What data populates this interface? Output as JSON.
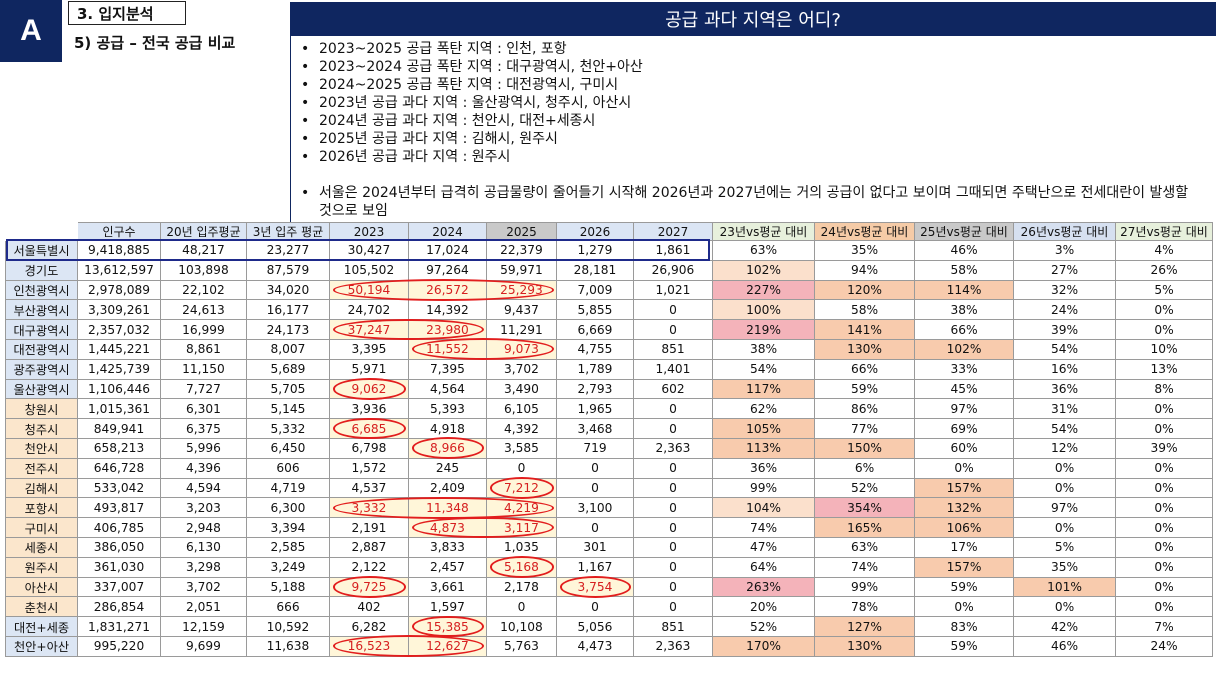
{
  "badge": "A",
  "section_title": "3. 입지분석",
  "subtitle": "5) 공급 – 전국 공급 비교",
  "banner_title": "공급 과다 지역은 어디?",
  "notes": [
    "2023~2025 공급 폭탄 지역 : 인천, 포항",
    "2023~2024 공급 폭탄 지역 : 대구광역시, 천안+아산",
    "2024~2025 공급 폭탄 지역 : 대전광역시, 구미시",
    "2023년 공급 과다 지역 : 울산광역시, 청주시, 아산시",
    "2024년 공급 과다 지역 : 천안시, 대전+세종시",
    "2025년 공급 과다 지역 : 김해시, 원주시",
    "2026년 공급 과다 지역 : 원주시",
    "서울은 2024년부터 급격히 공급물량이 줄어들기 시작해 2026년과 2027년에는 거의 공급이 없다고 보이며 그때되면 주택난으로 전세대란이 발생할 것으로 보임"
  ],
  "table": {
    "headers": [
      "",
      "인구수",
      "20년 입주평균",
      "3년 입주 평균",
      "2023",
      "2024",
      "2025",
      "2026",
      "2027",
      "23년vs평균 대비",
      "24년vs평균 대비",
      "25년vs평균 대비",
      "26년vs평균 대비",
      "27년vs평균 대비"
    ],
    "rows": [
      [
        "서울특별시",
        "9,418,885",
        "48,217",
        "23,277",
        "30,427",
        "17,024",
        "22,379",
        "1,279",
        "1,861",
        "63%",
        "35%",
        "46%",
        "3%",
        "4%"
      ],
      [
        "경기도",
        "13,612,597",
        "103,898",
        "87,579",
        "105,502",
        "97,264",
        "59,971",
        "28,181",
        "26,906",
        "102%",
        "94%",
        "58%",
        "27%",
        "26%"
      ],
      [
        "인천광역시",
        "2,978,089",
        "22,102",
        "34,020",
        "50,194",
        "26,572",
        "25,293",
        "7,009",
        "1,021",
        "227%",
        "120%",
        "114%",
        "32%",
        "5%"
      ],
      [
        "부산광역시",
        "3,309,261",
        "24,613",
        "16,177",
        "24,702",
        "14,392",
        "9,437",
        "5,855",
        "0",
        "100%",
        "58%",
        "38%",
        "24%",
        "0%"
      ],
      [
        "대구광역시",
        "2,357,032",
        "16,999",
        "24,173",
        "37,247",
        "23,980",
        "11,291",
        "6,669",
        "0",
        "219%",
        "141%",
        "66%",
        "39%",
        "0%"
      ],
      [
        "대전광역시",
        "1,445,221",
        "8,861",
        "8,007",
        "3,395",
        "11,552",
        "9,073",
        "4,755",
        "851",
        "38%",
        "130%",
        "102%",
        "54%",
        "10%"
      ],
      [
        "광주광역시",
        "1,425,739",
        "11,150",
        "5,689",
        "5,971",
        "7,395",
        "3,702",
        "1,789",
        "1,401",
        "54%",
        "66%",
        "33%",
        "16%",
        "13%"
      ],
      [
        "울산광역시",
        "1,106,446",
        "7,727",
        "5,705",
        "9,062",
        "4,564",
        "3,490",
        "2,793",
        "602",
        "117%",
        "59%",
        "45%",
        "36%",
        "8%"
      ],
      [
        "창원시",
        "1,015,361",
        "6,301",
        "5,145",
        "3,936",
        "5,393",
        "6,105",
        "1,965",
        "0",
        "62%",
        "86%",
        "97%",
        "31%",
        "0%"
      ],
      [
        "청주시",
        "849,941",
        "6,375",
        "5,332",
        "6,685",
        "4,918",
        "4,392",
        "3,468",
        "0",
        "105%",
        "77%",
        "69%",
        "54%",
        "0%"
      ],
      [
        "천안시",
        "658,213",
        "5,996",
        "6,450",
        "6,798",
        "8,966",
        "3,585",
        "719",
        "2,363",
        "113%",
        "150%",
        "60%",
        "12%",
        "39%"
      ],
      [
        "전주시",
        "646,728",
        "4,396",
        "606",
        "1,572",
        "245",
        "0",
        "0",
        "0",
        "36%",
        "6%",
        "0%",
        "0%",
        "0%"
      ],
      [
        "김해시",
        "533,042",
        "4,594",
        "4,719",
        "4,537",
        "2,409",
        "7,212",
        "0",
        "0",
        "99%",
        "52%",
        "157%",
        "0%",
        "0%"
      ],
      [
        "포항시",
        "493,817",
        "3,203",
        "6,300",
        "3,332",
        "11,348",
        "4,219",
        "3,100",
        "0",
        "104%",
        "354%",
        "132%",
        "97%",
        "0%"
      ],
      [
        "구미시",
        "406,785",
        "2,948",
        "3,394",
        "2,191",
        "4,873",
        "3,117",
        "0",
        "0",
        "74%",
        "165%",
        "106%",
        "0%",
        "0%"
      ],
      [
        "세종시",
        "386,050",
        "6,130",
        "2,585",
        "2,887",
        "3,833",
        "1,035",
        "301",
        "0",
        "47%",
        "63%",
        "17%",
        "5%",
        "0%"
      ],
      [
        "원주시",
        "361,030",
        "3,298",
        "3,249",
        "2,122",
        "2,457",
        "5,168",
        "1,167",
        "0",
        "64%",
        "74%",
        "157%",
        "35%",
        "0%"
      ],
      [
        "아산시",
        "337,007",
        "3,702",
        "5,188",
        "9,725",
        "3,661",
        "2,178",
        "3,754",
        "0",
        "263%",
        "99%",
        "59%",
        "101%",
        "0%"
      ],
      [
        "춘천시",
        "286,854",
        "2,051",
        "666",
        "402",
        "1,597",
        "0",
        "0",
        "0",
        "20%",
        "78%",
        "0%",
        "0%",
        "0%"
      ],
      [
        "대전+세종",
        "1,831,271",
        "12,159",
        "10,592",
        "6,282",
        "15,385",
        "10,108",
        "5,056",
        "851",
        "52%",
        "127%",
        "83%",
        "42%",
        "7%"
      ],
      [
        "천안+아산",
        "995,220",
        "9,699",
        "11,638",
        "16,523",
        "12,627",
        "5,763",
        "4,473",
        "2,363",
        "170%",
        "130%",
        "59%",
        "46%",
        "24%"
      ]
    ]
  },
  "colors": {
    "navy": "#0f2660",
    "circle_red": "#e21d1d",
    "hot": "#f4b3ba",
    "warm": "#f8cbad",
    "light": "#fbe0cc"
  }
}
